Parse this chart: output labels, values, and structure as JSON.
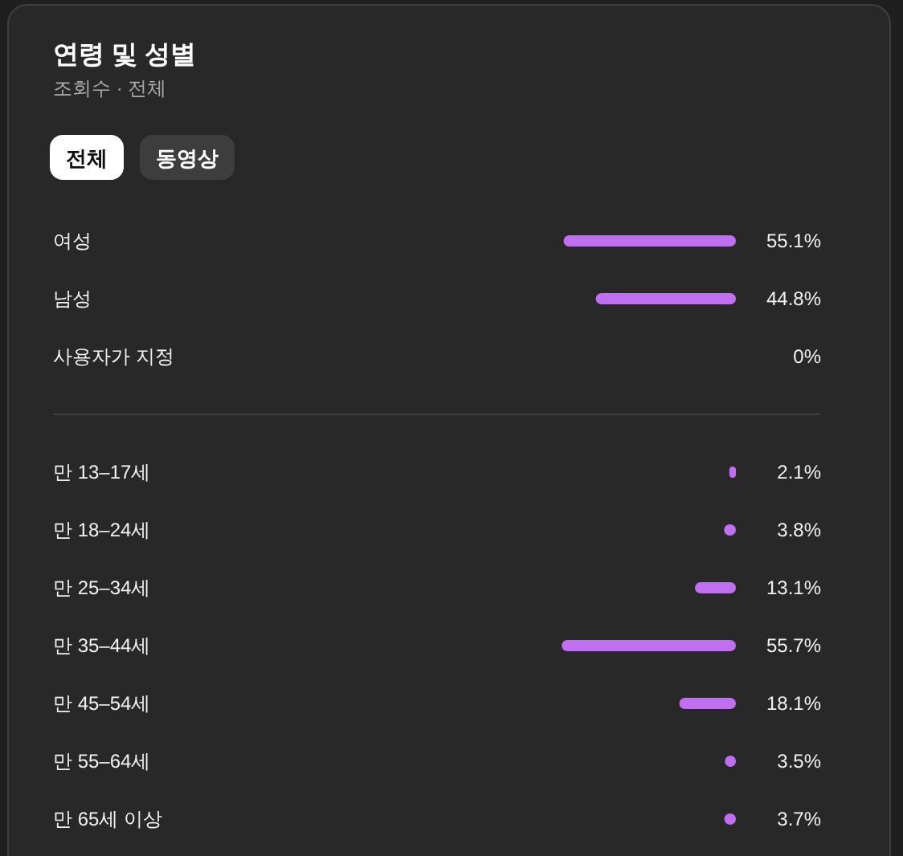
{
  "chart_data": [
    {
      "type": "other",
      "title": "연령 및 성별",
      "subtitle": "조회수 · 전체",
      "annotations": [
        "전체",
        "동영상"
      ]
    },
    {
      "type": "bar",
      "orientation": "horizontal",
      "categories": [
        "여성",
        "남성",
        "사용자가 지정"
      ],
      "values": [
        55.1,
        44.8,
        0
      ],
      "value_labels": [
        "55.1%",
        "44.8%",
        "0%"
      ],
      "color": "#bf6ff0",
      "xlim": [
        56,
        0
      ],
      "tick_labels": "y"
    },
    {
      "type": "bar",
      "orientation": "horizontal",
      "categories": [
        "만 13–17세",
        "만 18–24세",
        "만 25–34세",
        "만 35–44세",
        "만 45–54세",
        "만 55–64세",
        "만 65세 이상"
      ],
      "values": [
        2.1,
        3.8,
        13.1,
        55.7,
        18.1,
        3.5,
        3.7
      ],
      "value_labels": [
        "2.1%",
        "3.8%",
        "13.1%",
        "55.7%",
        "18.1%",
        "3.5%",
        "3.7%"
      ],
      "color": "#bf6ff0",
      "xlim": [
        56,
        0
      ],
      "tick_labels": "y"
    }
  ]
}
